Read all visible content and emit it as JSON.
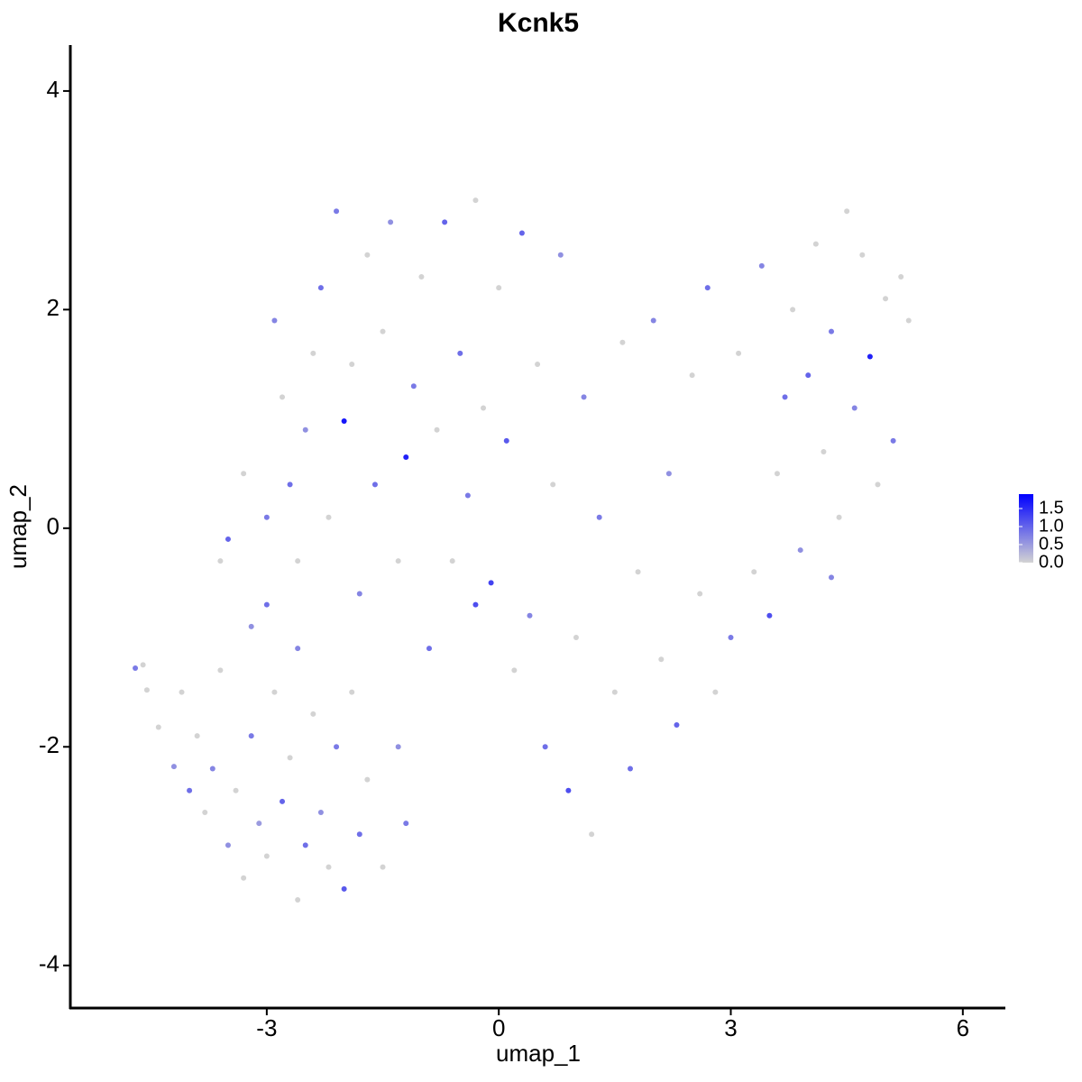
{
  "chart_data": {
    "type": "scatter",
    "title": "Kcnk5",
    "x_label": "umap_1",
    "y_label": "umap_2",
    "xlim": [
      -5.54,
      6.55
    ],
    "ylim": [
      -4.39,
      4.42
    ],
    "xticks": [
      -3,
      0,
      3,
      6
    ],
    "yticks": [
      -4,
      -2,
      0,
      2,
      4
    ],
    "color_low": "#d3d3d3",
    "color_high": "#0000ff",
    "color_lim": [
      0,
      1.9
    ],
    "color_ticks": [
      {
        "value": 0,
        "label": "0.0"
      },
      0.5,
      {
        "value": 1,
        "label": "1.0"
      },
      1.5
    ],
    "x": [
      -4.7,
      -4.6,
      -4.55,
      -4.4,
      -4.2,
      -4.1,
      -4.0,
      -3.9,
      -3.8,
      -3.7,
      -3.6,
      -3.5,
      -3.4,
      -3.3,
      -3.2,
      -3.1,
      -3.0,
      -3.0,
      -2.9,
      -2.8,
      -2.7,
      -2.6,
      -2.6,
      -2.5,
      -2.4,
      -2.3,
      -2.2,
      -2.1,
      -2.0,
      -1.9,
      -1.8,
      -1.7,
      -1.5,
      -1.3,
      -1.2,
      -3.5,
      -3.3,
      -3.6,
      -3.2,
      -3.0,
      -2.8,
      -2.7,
      -2.9,
      -2.6,
      -2.5,
      -2.4,
      -2.3,
      -2.2,
      -2.1,
      -2.0,
      -1.9,
      -1.8,
      -1.7,
      -1.6,
      -1.5,
      -1.4,
      -1.3,
      -1.2,
      -1.1,
      -1.0,
      -0.9,
      -0.8,
      -0.7,
      -0.6,
      -0.5,
      -0.4,
      -0.3,
      -0.3,
      -0.2,
      -0.1,
      0.0,
      0.1,
      0.2,
      0.3,
      0.4,
      0.5,
      0.6,
      0.7,
      0.8,
      0.9,
      1.0,
      1.1,
      1.2,
      1.3,
      1.5,
      1.6,
      1.7,
      1.8,
      2.0,
      2.1,
      2.2,
      2.3,
      2.5,
      2.6,
      2.7,
      2.8,
      3.0,
      3.1,
      3.3,
      3.4,
      3.5,
      3.6,
      3.7,
      3.8,
      3.9,
      4.0,
      4.1,
      4.2,
      4.3,
      4.4,
      4.5,
      4.6,
      4.7,
      4.8,
      4.9,
      5.0,
      5.1,
      5.2,
      5.3,
      4.3
    ],
    "y": [
      -1.28,
      -1.25,
      -1.48,
      -1.82,
      -2.18,
      -1.5,
      -2.4,
      -1.9,
      -2.6,
      -2.2,
      -1.3,
      -2.9,
      -2.4,
      -3.2,
      -1.9,
      -2.7,
      -0.7,
      -3.0,
      -1.5,
      -2.5,
      -2.1,
      -1.1,
      -3.4,
      -2.9,
      -1.7,
      -2.6,
      -3.1,
      -2.0,
      -3.3,
      -1.5,
      -2.8,
      -2.3,
      -3.1,
      -2.0,
      -2.7,
      -0.1,
      0.5,
      -0.3,
      -0.9,
      0.1,
      1.2,
      0.4,
      1.9,
      -0.3,
      0.9,
      1.6,
      2.2,
      0.1,
      2.9,
      0.98,
      1.5,
      -0.6,
      2.5,
      0.4,
      1.8,
      2.8,
      -0.3,
      0.65,
      1.3,
      2.3,
      -1.1,
      0.9,
      2.8,
      -0.3,
      1.6,
      0.3,
      3.0,
      -0.7,
      1.1,
      -0.5,
      2.2,
      0.8,
      -1.3,
      2.7,
      -0.8,
      1.5,
      -2.0,
      0.4,
      2.5,
      -2.4,
      -1.0,
      1.2,
      -2.8,
      0.1,
      -1.5,
      1.7,
      -2.2,
      -0.4,
      1.9,
      -1.2,
      0.5,
      -1.8,
      1.4,
      -0.6,
      2.2,
      -1.5,
      -1.0,
      1.6,
      -0.4,
      2.4,
      -0.8,
      0.5,
      1.2,
      2.0,
      -0.2,
      1.4,
      2.6,
      0.7,
      1.8,
      0.1,
      2.9,
      1.1,
      2.5,
      1.57,
      0.4,
      2.1,
      0.8,
      2.3,
      1.9,
      -0.45
    ],
    "values": [
      0.8,
      0,
      0,
      0,
      0.6,
      0,
      0.9,
      0,
      0,
      0.7,
      0,
      0.6,
      0,
      0,
      0.8,
      0.5,
      0.9,
      0,
      0,
      1.0,
      0,
      0.7,
      0,
      0.9,
      0,
      0.6,
      0,
      0.8,
      1.1,
      0,
      0.9,
      0,
      0,
      0.6,
      0.8,
      1.0,
      0,
      0,
      0.6,
      0.8,
      0,
      0.9,
      0.7,
      0,
      0.6,
      0,
      0.9,
      0,
      0.8,
      1.7,
      0,
      0.7,
      0,
      0.9,
      0,
      0.6,
      0,
      1.6,
      0.8,
      0,
      0.9,
      0,
      1.0,
      0,
      0.9,
      0.8,
      0,
      1.2,
      0,
      1.3,
      0,
      1.1,
      0,
      1.0,
      0.7,
      0,
      0.9,
      0,
      0.6,
      1.2,
      0,
      0.7,
      0,
      0.8,
      0,
      0,
      0.9,
      0,
      0.7,
      0,
      0.6,
      1.0,
      0,
      0,
      0.9,
      0,
      0.8,
      0,
      0,
      0.7,
      1.2,
      0,
      0.9,
      0,
      0.6,
      1.0,
      0,
      0,
      0.8,
      0,
      0,
      0.7,
      0,
      1.6,
      0,
      0,
      0.8,
      0,
      0,
      0.7
    ]
  }
}
